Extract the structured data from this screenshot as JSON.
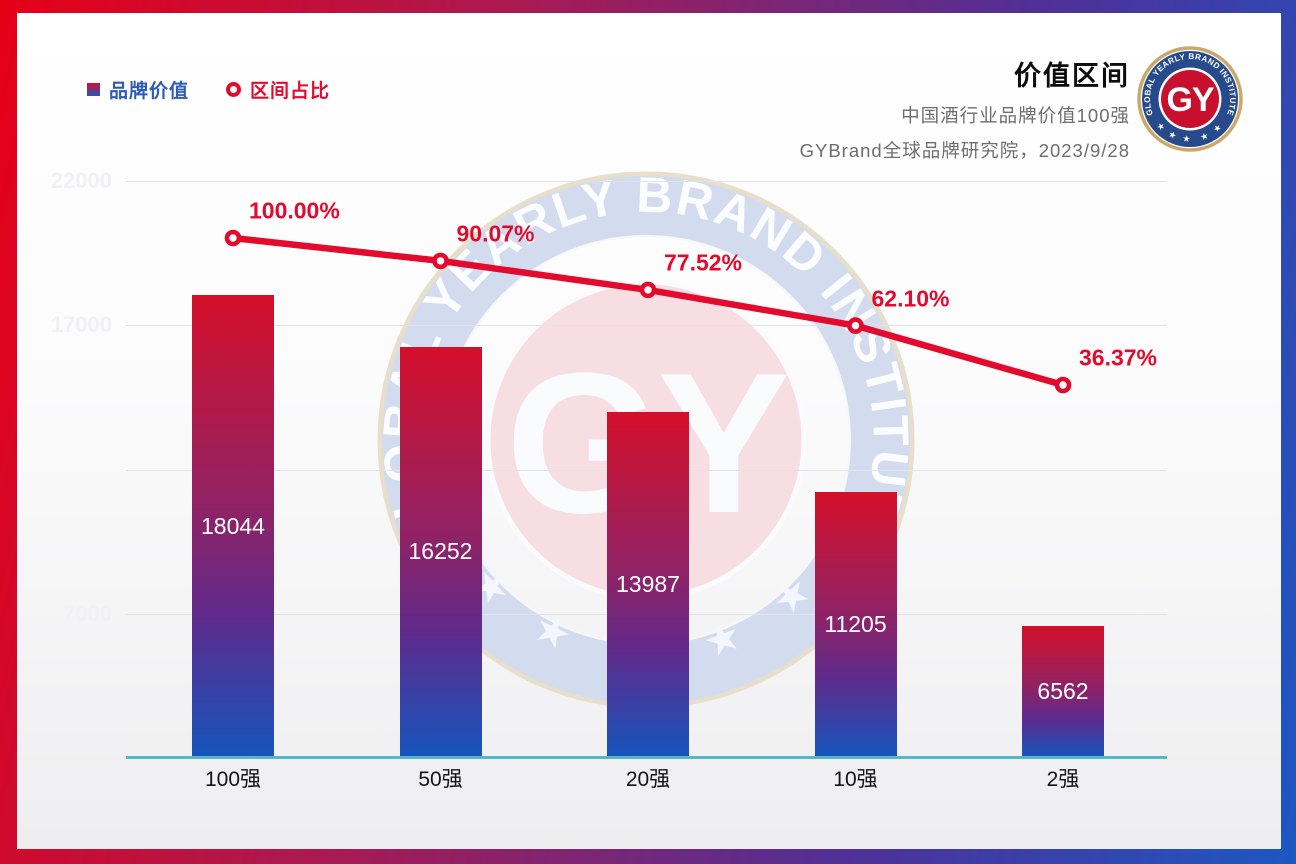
{
  "header": {
    "title": "价值区间",
    "subtitle": "中国酒行业品牌价值100强",
    "source_line": "GYBrand全球品牌研究院，2023/9/28"
  },
  "legend": [
    {
      "label": "品牌价值"
    },
    {
      "label": "区间占比"
    }
  ],
  "logo": {
    "arc_text": "GLOBAL YEARLY BRAND INSTITUTE",
    "monogram": "GY"
  },
  "watermark": {
    "arc_text": "GLOBAL YEARLY BRAND INSTITUTE",
    "monogram": "GY"
  },
  "chart_data": {
    "type": "bar+line",
    "categories": [
      "100强",
      "50强",
      "20强",
      "10强",
      "2强"
    ],
    "series": [
      {
        "name": "品牌价值",
        "type": "bar",
        "values": [
          18044,
          16252,
          13987,
          11205,
          6562
        ],
        "value_labels": [
          "18044",
          "16252",
          "13987",
          "11205",
          "6562"
        ]
      },
      {
        "name": "区间占比",
        "type": "line",
        "unit": "%",
        "values": [
          100.0,
          90.07,
          77.52,
          62.1,
          36.37
        ],
        "value_labels": [
          "100.00%",
          "90.07%",
          "77.52%",
          "62.10%",
          "36.37%"
        ]
      }
    ],
    "y_axis": {
      "min": 2000,
      "max": 22000,
      "grid": true,
      "ticks": [
        {
          "value": 22000,
          "label": "22000"
        },
        {
          "value": 17000,
          "label": "17000"
        },
        {
          "value": 12000,
          "label": ""
        },
        {
          "value": 7000,
          "label": "7000"
        }
      ]
    },
    "colors": {
      "bar_top": "#d50f2b",
      "bar_bottom": "#1556bd",
      "line": "#e30b2d",
      "axis_line": "#54b8ca",
      "legend_bar_text": "#2c5cb8"
    }
  }
}
